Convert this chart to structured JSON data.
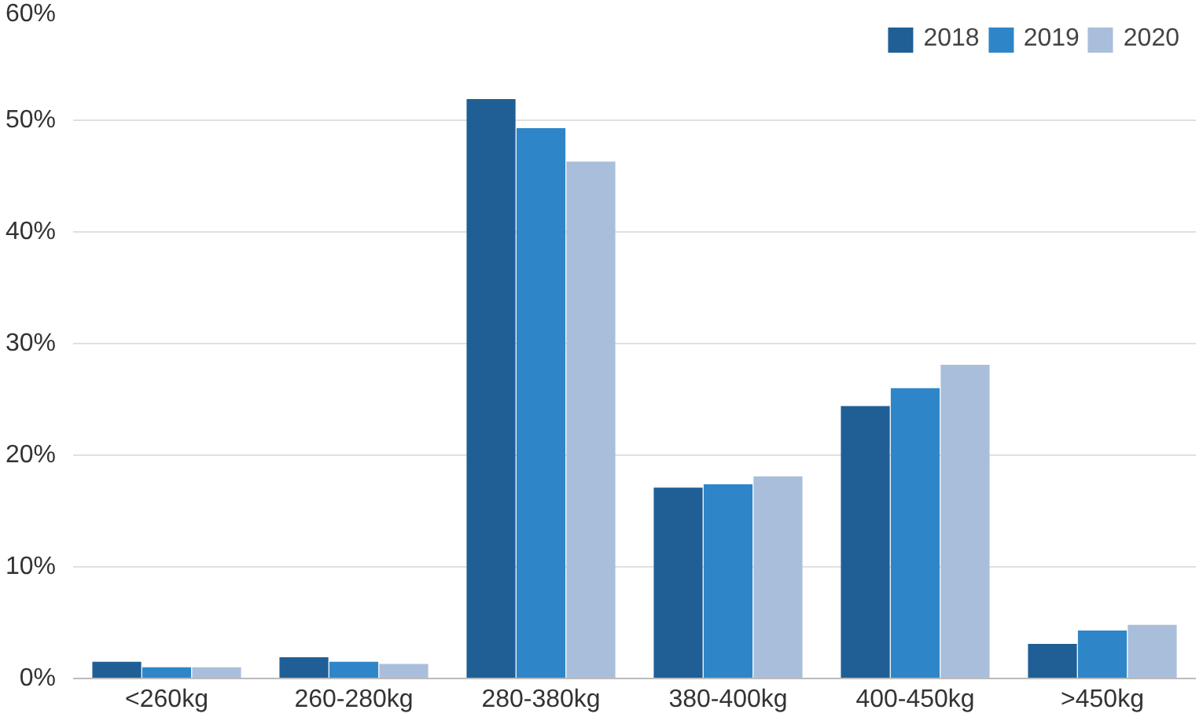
{
  "chart_data": {
    "type": "bar",
    "categories": [
      "<260kg",
      "260-280kg",
      "280-380kg",
      "380-400kg",
      "400-450kg",
      ">450kg"
    ],
    "series": [
      {
        "name": "2018",
        "color": "#1f5f96",
        "values": [
          1.5,
          1.9,
          51.9,
          17.1,
          24.4,
          3.1
        ]
      },
      {
        "name": "2019",
        "color": "#2e86c8",
        "values": [
          1.0,
          1.5,
          49.3,
          17.4,
          26.0,
          4.3
        ]
      },
      {
        "name": "2020",
        "color": "#a9bedb",
        "values": [
          1.0,
          1.3,
          46.3,
          18.1,
          28.1,
          4.8
        ]
      }
    ],
    "ylim": [
      0,
      60
    ],
    "yticks": [
      {
        "value": 0,
        "label": "0%"
      },
      {
        "value": 10,
        "label": "10%"
      },
      {
        "value": 20,
        "label": "20%"
      },
      {
        "value": 30,
        "label": "30%"
      },
      {
        "value": 40,
        "label": "40%"
      },
      {
        "value": 50,
        "label": "50%"
      },
      {
        "value": 60,
        "label": "60%"
      }
    ],
    "grid": "y",
    "legend": "top right"
  }
}
